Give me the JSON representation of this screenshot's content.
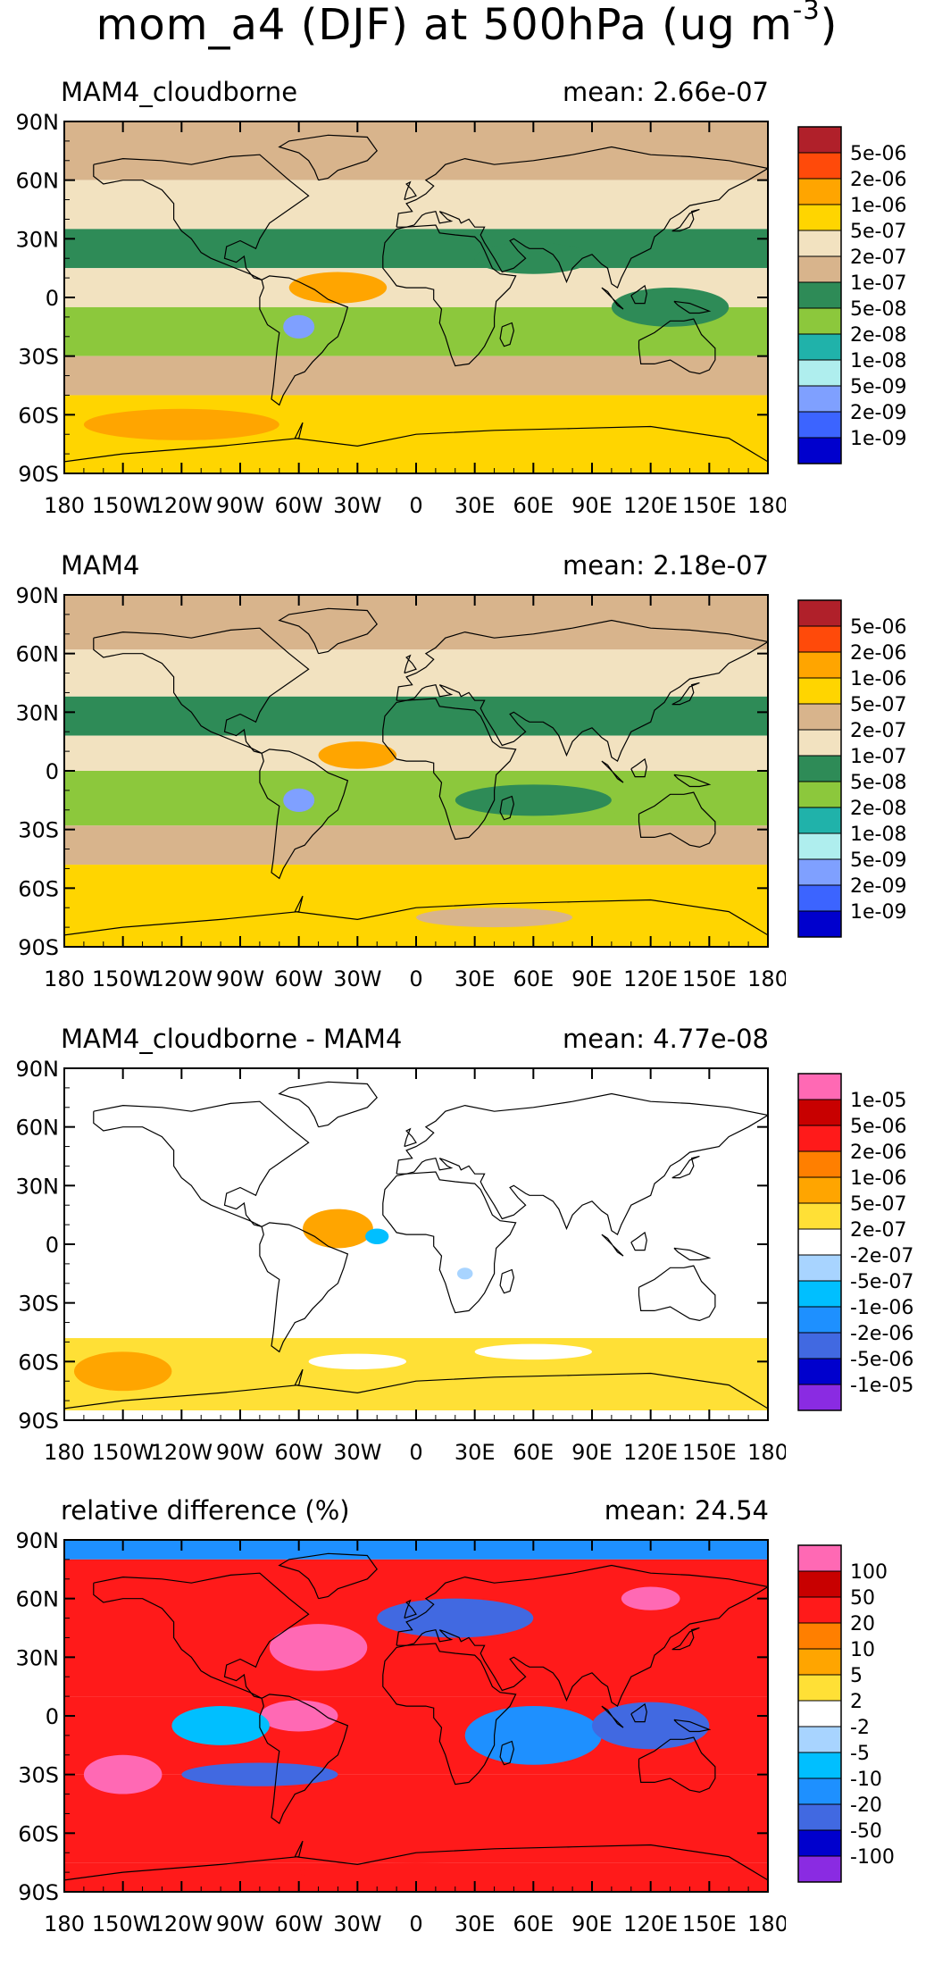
{
  "figure": {
    "title_main": "mom_a4 (DJF) at 500hPa (ug m",
    "title_sup": "-3",
    "title_close": ")"
  },
  "chart_data": [
    {
      "type": "heatmap",
      "title": "MAM4_cloudborne",
      "mean_label": "mean: 2.66e-07",
      "x_ticks": [
        "180",
        "150W",
        "120W",
        "90W",
        "60W",
        "30W",
        "0",
        "30E",
        "60E",
        "90E",
        "120E",
        "150E",
        "180"
      ],
      "y_ticks": [
        "90N",
        "60N",
        "30N",
        "0",
        "30S",
        "60S",
        "90S"
      ],
      "xlim": [
        -180,
        180
      ],
      "ylim": [
        -90,
        90
      ],
      "colorbar_labels": [
        "5e-06",
        "2e-06",
        "1e-06",
        "5e-07",
        "2e-07",
        "1e-07",
        "5e-08",
        "2e-08",
        "1e-08",
        "5e-09",
        "2e-09",
        "1e-09"
      ],
      "colorbar_colors": [
        "#b0202a",
        "#ff4a0a",
        "#ffa500",
        "#ffd500",
        "#f2e2c0",
        "#d8b48c",
        "#2e8b57",
        "#8cc83c",
        "#20b2aa",
        "#afeeee",
        "#7fa0ff",
        "#3c64ff",
        "#0000cd"
      ],
      "zones": [
        {
          "lat_from": 90,
          "lat_to": 60,
          "color": "#d8b48c"
        },
        {
          "lat_from": 60,
          "lat_to": 35,
          "color": "#f2e2c0"
        },
        {
          "lat_from": 35,
          "lat_to": 15,
          "color": "#2e8b57"
        },
        {
          "lat_from": 15,
          "lat_to": -5,
          "color": "#f2e2c0"
        },
        {
          "lat_from": -5,
          "lat_to": -30,
          "color": "#8cc83c"
        },
        {
          "lat_from": -30,
          "lat_to": -50,
          "color": "#d8b48c"
        },
        {
          "lat_from": -50,
          "lat_to": -90,
          "color": "#ffd500"
        }
      ],
      "blobs": [
        {
          "lon": -40,
          "lat": 5,
          "rx": 25,
          "ry": 8,
          "color": "#ffa500"
        },
        {
          "lon": -60,
          "lat": -15,
          "rx": 8,
          "ry": 6,
          "color": "#7fa0ff"
        },
        {
          "lon": 130,
          "lat": -5,
          "rx": 30,
          "ry": 10,
          "color": "#2e8b57"
        },
        {
          "lon": -120,
          "lat": -65,
          "rx": 50,
          "ry": 8,
          "color": "#ffa500"
        },
        {
          "lon": 60,
          "lat": 20,
          "rx": 30,
          "ry": 8,
          "color": "#2e8b57"
        }
      ]
    },
    {
      "type": "heatmap",
      "title": "MAM4",
      "mean_label": "mean: 2.18e-07",
      "x_ticks": [
        "180",
        "150W",
        "120W",
        "90W",
        "60W",
        "30W",
        "0",
        "30E",
        "60E",
        "90E",
        "120E",
        "150E",
        "180"
      ],
      "y_ticks": [
        "90N",
        "60N",
        "30N",
        "0",
        "30S",
        "60S",
        "90S"
      ],
      "xlim": [
        -180,
        180
      ],
      "ylim": [
        -90,
        90
      ],
      "colorbar_labels": [
        "5e-06",
        "2e-06",
        "1e-06",
        "5e-07",
        "2e-07",
        "1e-07",
        "5e-08",
        "2e-08",
        "1e-08",
        "5e-09",
        "2e-09",
        "1e-09"
      ],
      "colorbar_colors": [
        "#b0202a",
        "#ff4a0a",
        "#ffa500",
        "#ffd500",
        "#d8b48c",
        "#f2e2c0",
        "#2e8b57",
        "#8cc83c",
        "#20b2aa",
        "#afeeee",
        "#7fa0ff",
        "#3c64ff",
        "#0000cd"
      ],
      "zones": [
        {
          "lat_from": 90,
          "lat_to": 62,
          "color": "#d8b48c"
        },
        {
          "lat_from": 62,
          "lat_to": 38,
          "color": "#f2e2c0"
        },
        {
          "lat_from": 38,
          "lat_to": 18,
          "color": "#2e8b57"
        },
        {
          "lat_from": 18,
          "lat_to": 0,
          "color": "#f2e2c0"
        },
        {
          "lat_from": 0,
          "lat_to": -28,
          "color": "#8cc83c"
        },
        {
          "lat_from": -28,
          "lat_to": -48,
          "color": "#d8b48c"
        },
        {
          "lat_from": -48,
          "lat_to": -90,
          "color": "#ffd500"
        }
      ],
      "blobs": [
        {
          "lon": -30,
          "lat": 8,
          "rx": 20,
          "ry": 7,
          "color": "#ffa500"
        },
        {
          "lon": -60,
          "lat": -15,
          "rx": 8,
          "ry": 6,
          "color": "#7fa0ff"
        },
        {
          "lon": 120,
          "lat": -15,
          "rx": 25,
          "ry": 10,
          "color": "#8cc83c"
        },
        {
          "lon": 60,
          "lat": -15,
          "rx": 40,
          "ry": 8,
          "color": "#2e8b57"
        },
        {
          "lon": 40,
          "lat": -75,
          "rx": 40,
          "ry": 5,
          "color": "#d8b48c"
        }
      ]
    },
    {
      "type": "heatmap",
      "title": "MAM4_cloudborne - MAM4",
      "mean_label": "mean: 4.77e-08",
      "x_ticks": [
        "180",
        "150W",
        "120W",
        "90W",
        "60W",
        "30W",
        "0",
        "30E",
        "60E",
        "90E",
        "120E",
        "150E",
        "180"
      ],
      "y_ticks": [
        "90N",
        "60N",
        "30N",
        "0",
        "30S",
        "60S",
        "90S"
      ],
      "xlim": [
        -180,
        180
      ],
      "ylim": [
        -90,
        90
      ],
      "colorbar_labels": [
        "1e-05",
        "5e-06",
        "2e-06",
        "1e-06",
        "5e-07",
        "2e-07",
        "-2e-07",
        "-5e-07",
        "-1e-06",
        "-2e-06",
        "-5e-06",
        "-1e-05"
      ],
      "colorbar_colors": [
        "#ff69b4",
        "#c80000",
        "#ff1a1a",
        "#ff7f00",
        "#ffa500",
        "#ffe036",
        "#ffffff",
        "#a8d4ff",
        "#00bfff",
        "#1e90ff",
        "#4169e1",
        "#0000cd",
        "#8a2be2"
      ],
      "zones": [
        {
          "lat_from": 90,
          "lat_to": -48,
          "color": "#ffffff"
        },
        {
          "lat_from": -48,
          "lat_to": -85,
          "color": "#ffe036"
        },
        {
          "lat_from": -85,
          "lat_to": -90,
          "color": "#ffffff"
        }
      ],
      "blobs": [
        {
          "lon": -40,
          "lat": 8,
          "rx": 18,
          "ry": 10,
          "color": "#ffa500"
        },
        {
          "lon": -20,
          "lat": 4,
          "rx": 6,
          "ry": 4,
          "color": "#00bfff"
        },
        {
          "lon": 25,
          "lat": -15,
          "rx": 4,
          "ry": 3,
          "color": "#a8d4ff"
        },
        {
          "lon": -150,
          "lat": -65,
          "rx": 25,
          "ry": 10,
          "color": "#ffa500"
        },
        {
          "lon": 60,
          "lat": -55,
          "rx": 30,
          "ry": 4,
          "color": "#ffffff"
        },
        {
          "lon": -30,
          "lat": -60,
          "rx": 25,
          "ry": 4,
          "color": "#ffffff"
        }
      ]
    },
    {
      "type": "heatmap",
      "title": "relative difference (%)",
      "mean_label": "mean: 24.54",
      "x_ticks": [
        "180",
        "150W",
        "120W",
        "90W",
        "60W",
        "30W",
        "0",
        "30E",
        "60E",
        "90E",
        "120E",
        "150E",
        "180"
      ],
      "y_ticks": [
        "90N",
        "60N",
        "30N",
        "0",
        "30S",
        "60S",
        "90S"
      ],
      "xlim": [
        -180,
        180
      ],
      "ylim": [
        -90,
        90
      ],
      "colorbar_labels": [
        "100",
        "50",
        "20",
        "10",
        "5",
        "2",
        "-2",
        "-5",
        "-10",
        "-20",
        "-50",
        "-100"
      ],
      "colorbar_colors": [
        "#ff69b4",
        "#c80000",
        "#ff1a1a",
        "#ff7f00",
        "#ffa500",
        "#ffe036",
        "#ffffff",
        "#a8d4ff",
        "#00bfff",
        "#1e90ff",
        "#4169e1",
        "#0000cd",
        "#8a2be2"
      ],
      "zones": [
        {
          "lat_from": 90,
          "lat_to": 80,
          "color": "#1e90ff"
        },
        {
          "lat_from": 80,
          "lat_to": 10,
          "color": "#ff1a1a"
        },
        {
          "lat_from": 10,
          "lat_to": -30,
          "color": "#ff1a1a"
        },
        {
          "lat_from": -30,
          "lat_to": -75,
          "color": "#ff1a1a"
        },
        {
          "lat_from": -75,
          "lat_to": -90,
          "color": "#ff1a1a"
        }
      ],
      "blobs": [
        {
          "lon": -50,
          "lat": 35,
          "rx": 25,
          "ry": 12,
          "color": "#ff69b4"
        },
        {
          "lon": -60,
          "lat": 0,
          "rx": 20,
          "ry": 8,
          "color": "#ff69b4"
        },
        {
          "lon": 60,
          "lat": -10,
          "rx": 35,
          "ry": 15,
          "color": "#1e90ff"
        },
        {
          "lon": 120,
          "lat": -5,
          "rx": 30,
          "ry": 12,
          "color": "#4169e1"
        },
        {
          "lon": -150,
          "lat": -30,
          "rx": 20,
          "ry": 10,
          "color": "#ff69b4"
        },
        {
          "lon": 20,
          "lat": 50,
          "rx": 40,
          "ry": 10,
          "color": "#4169e1"
        },
        {
          "lon": -100,
          "lat": -5,
          "rx": 25,
          "ry": 10,
          "color": "#00bfff"
        },
        {
          "lon": 120,
          "lat": 60,
          "rx": 15,
          "ry": 6,
          "color": "#ff69b4"
        },
        {
          "lon": -80,
          "lat": -30,
          "rx": 40,
          "ry": 6,
          "color": "#4169e1"
        },
        {
          "lon": 0,
          "lat": -80,
          "rx": 60,
          "ry": 5,
          "color": "#ff1a1a"
        }
      ]
    }
  ]
}
